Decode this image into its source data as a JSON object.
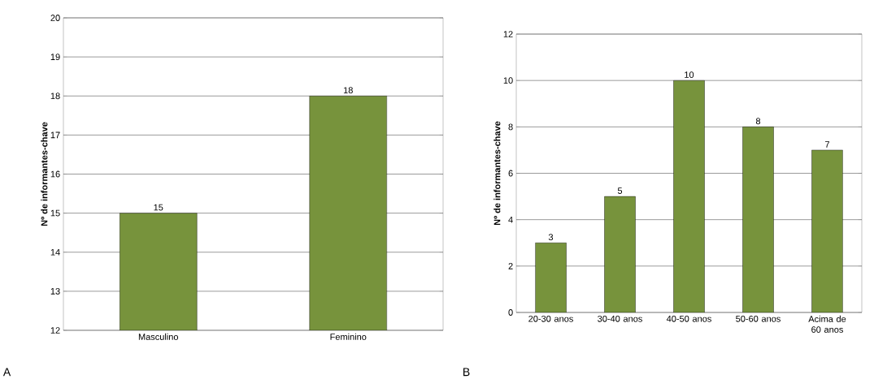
{
  "chart_data": [
    {
      "type": "bar",
      "ylabel": "Nº de informantes-chave",
      "categories": [
        "Masculino",
        "Feminino"
      ],
      "values": [
        15,
        18
      ],
      "color": "#77933c",
      "ylim": [
        12,
        20
      ],
      "yticks": [
        12,
        13,
        14,
        15,
        16,
        17,
        18,
        19,
        20
      ],
      "grid": "y",
      "data_labels": true,
      "annotations": [
        "A"
      ]
    },
    {
      "type": "bar",
      "ylabel": "Nº de informantes-chave",
      "categories": [
        "20-30 anos",
        "30-40 anos",
        "40-50 anos",
        "50-60 anos",
        "Acima de 60 anos"
      ],
      "values": [
        3,
        5,
        10,
        8,
        7
      ],
      "color": "#77933c",
      "ylim": [
        0,
        12
      ],
      "yticks": [
        0,
        2,
        4,
        6,
        8,
        10,
        12
      ],
      "grid": "y",
      "data_labels": true,
      "annotations": [
        "B"
      ]
    }
  ]
}
